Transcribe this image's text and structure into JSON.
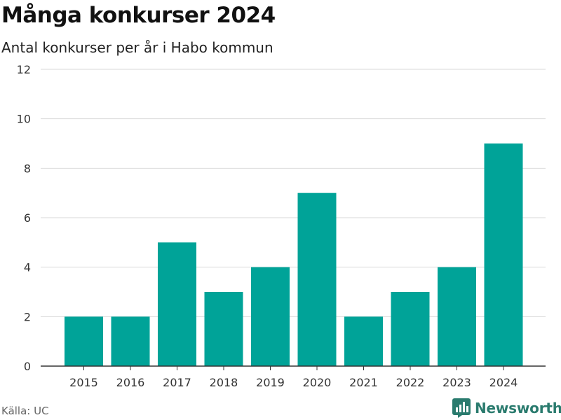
{
  "title": "Många konkurser 2024",
  "subtitle": "Antal konkurser per år i Habo kommun",
  "source": "Källa: UC",
  "brand": "Newsworthy",
  "chart_data": {
    "type": "bar",
    "categories": [
      "2015",
      "2016",
      "2017",
      "2018",
      "2019",
      "2020",
      "2021",
      "2022",
      "2023",
      "2024"
    ],
    "values": [
      2,
      2,
      5,
      3,
      4,
      7,
      2,
      3,
      4,
      9
    ],
    "ylim": [
      0,
      12
    ],
    "yticks": [
      0,
      2,
      4,
      6,
      8,
      10,
      12
    ],
    "grid": true,
    "bar_color": "#00a398",
    "grid_color": "#d9d9d9",
    "axis_color": "#333333"
  },
  "brand_color": "#2a7b6e"
}
